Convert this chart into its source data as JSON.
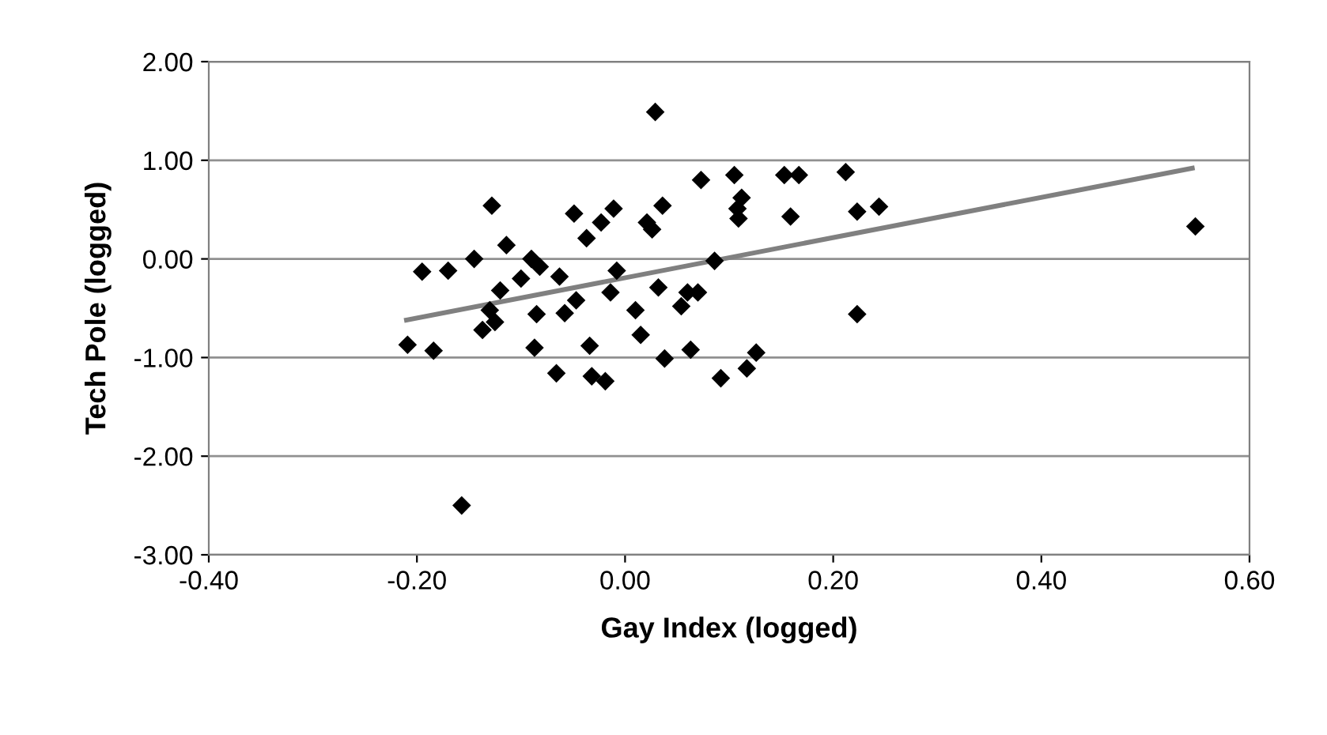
{
  "chart_data": {
    "type": "scatter",
    "xlabel": "Gay Index (logged)",
    "ylabel": "Tech Pole (logged)",
    "xlim": [
      -0.4,
      0.6
    ],
    "xticks": [
      {
        "value": -0.4,
        "label": "-0.40"
      },
      {
        "value": -0.2,
        "label": "-0.20"
      },
      {
        "value": 0,
        "label": "0.00"
      },
      {
        "value": 0.2,
        "label": "0.20"
      },
      {
        "value": 0.4,
        "label": "0.40"
      },
      {
        "value": 0.6,
        "label": "0.60"
      }
    ],
    "ylim": [
      -3,
      2
    ],
    "yticks": [
      {
        "value": -3,
        "label": "-3.00"
      },
      {
        "value": -2,
        "label": "-2.00"
      },
      {
        "value": -1,
        "label": "-1.00"
      },
      {
        "value": 0,
        "label": "0.00"
      },
      {
        "value": 1,
        "label": "1.00"
      },
      {
        "value": 2,
        "label": "2.00"
      }
    ],
    "grid": "y",
    "series": [
      {
        "marker": "diamond",
        "color": "#000000",
        "x": [
          -0.209,
          -0.195,
          -0.184,
          -0.17,
          -0.157,
          -0.145,
          -0.137,
          -0.13,
          -0.128,
          -0.125,
          -0.12,
          -0.114,
          -0.1,
          -0.09,
          -0.087,
          -0.085,
          -0.082,
          -0.066,
          -0.063,
          -0.058,
          -0.049,
          -0.047,
          -0.037,
          -0.034,
          -0.032,
          -0.023,
          -0.019,
          -0.014,
          -0.011,
          -0.008,
          0.01,
          0.015,
          0.021,
          0.026,
          0.029,
          0.032,
          0.036,
          0.038,
          0.054,
          0.06,
          0.063,
          0.07,
          0.073,
          0.086,
          0.092,
          0.105,
          0.108,
          0.109,
          0.112,
          0.117,
          0.126,
          0.153,
          0.159,
          0.167,
          0.212,
          0.223,
          0.223,
          0.244,
          0.548
        ],
        "values": [
          -0.87,
          -0.13,
          -0.93,
          -0.12,
          -2.5,
          0.0,
          -0.72,
          -0.52,
          0.54,
          -0.64,
          -0.32,
          0.14,
          -0.2,
          0.0,
          -0.9,
          -0.56,
          -0.08,
          -1.16,
          -0.18,
          -0.55,
          0.46,
          -0.42,
          0.21,
          -0.88,
          -1.19,
          0.37,
          -1.24,
          -0.34,
          0.51,
          -0.12,
          -0.52,
          -0.77,
          0.37,
          0.3,
          1.49,
          -0.29,
          0.54,
          -1.01,
          -0.48,
          -0.34,
          -0.92,
          -0.34,
          0.8,
          -0.02,
          -1.21,
          0.85,
          0.51,
          0.41,
          0.62,
          -1.11,
          -0.95,
          0.85,
          0.43,
          0.85,
          0.88,
          0.48,
          -0.56,
          0.53,
          0.33
        ]
      },
      {
        "type": "line",
        "color": "#808080",
        "x": [
          -0.21,
          0.545
        ],
        "values": [
          -0.62,
          0.92
        ]
      }
    ]
  }
}
